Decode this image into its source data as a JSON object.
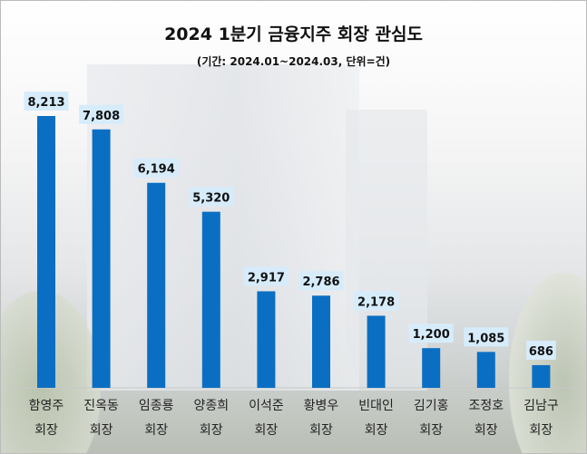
{
  "chart_data": {
    "type": "bar",
    "title": "2024 1분기 금융지주 회장  관심도",
    "subtitle": "(기간: 2024.01~2024.03, 단위=건)",
    "categories": [
      [
        "함영주",
        "회장"
      ],
      [
        "진옥동",
        "회장"
      ],
      [
        "임종룡",
        "회장"
      ],
      [
        "양종희",
        "회장"
      ],
      [
        "이석준",
        "회장"
      ],
      [
        "황병우",
        "회장"
      ],
      [
        "빈대인",
        "회장"
      ],
      [
        "김기홍",
        "회장"
      ],
      [
        "조정호",
        "회장"
      ],
      [
        "김남구",
        "회장"
      ]
    ],
    "values": [
      8213,
      7808,
      6194,
      5320,
      2917,
      2786,
      2178,
      1200,
      1085,
      686
    ],
    "value_labels": [
      "8,213",
      "7,808",
      "6,194",
      "5,320",
      "2,917",
      "2,786",
      "2,178",
      "1,200",
      "1,085",
      "686"
    ],
    "xlabel": "",
    "ylabel": "",
    "ylim": [
      0,
      8213
    ],
    "grid": false,
    "colors": {
      "bar": "#0a6fc2",
      "label_bg": "#d6ecfb"
    }
  }
}
